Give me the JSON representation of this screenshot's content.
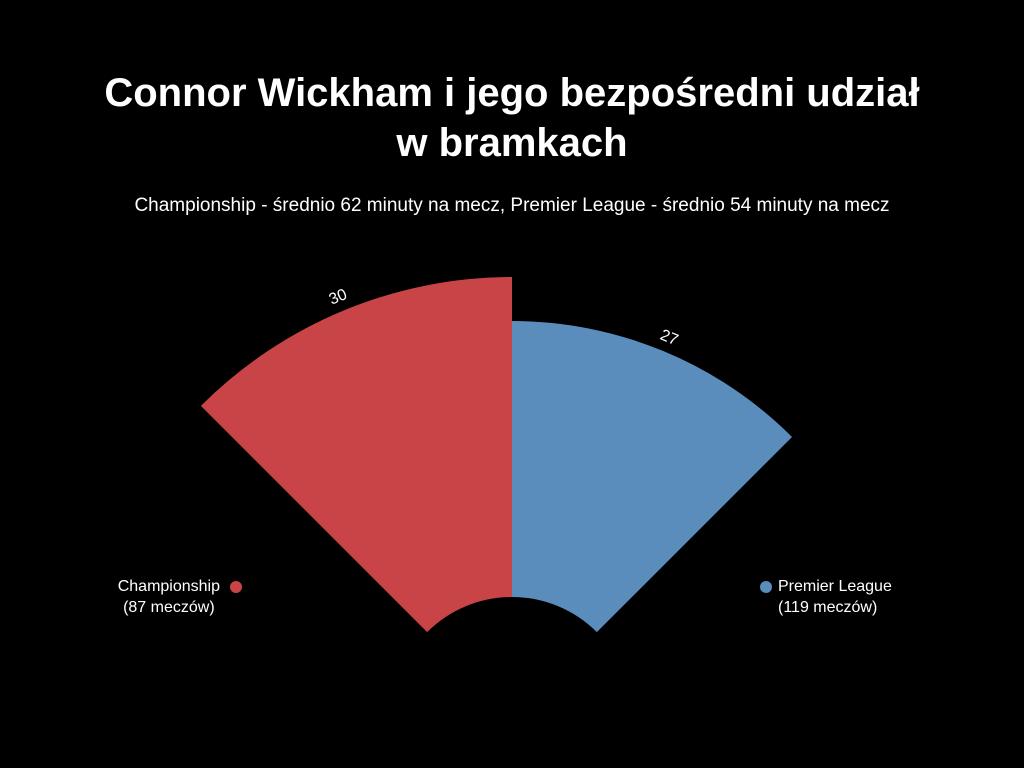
{
  "chart_data": {
    "type": "pie",
    "variant": "polar-area",
    "title_lines": [
      "Connor Wickham i jego bezpośredni udział",
      "w bramkach"
    ],
    "subtitle": "Championship - średnio 62 minuty na mecz, Premier League - średnio 54 minuty na mecz",
    "series": [
      {
        "name": "Championship",
        "detail": "(87 meczów)",
        "value": 30,
        "color": "#c94446",
        "legend_position": "left"
      },
      {
        "name": "Premier League",
        "detail": "(119 meczów)",
        "value": 27,
        "color": "#5a8dbb",
        "legend_position": "right"
      }
    ],
    "value_max": 30
  },
  "colors": {
    "background": "#000000",
    "text": "#ffffff"
  }
}
